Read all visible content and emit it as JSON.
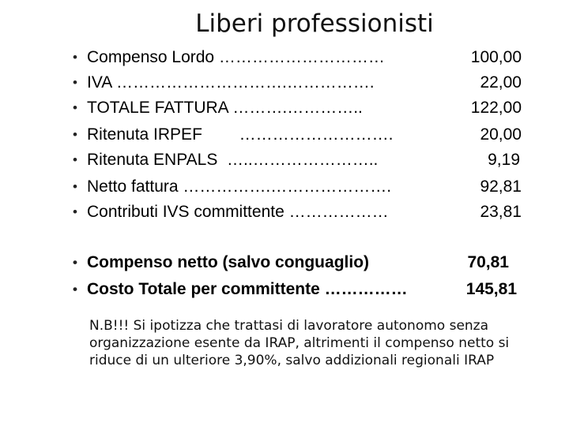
{
  "title": "Liberi professionisti",
  "rows": [
    {
      "label": "Compenso Lordo …………………………",
      "value": "100,00"
    },
    {
      "label": "IVA ………………………….…………….",
      "value": "22,00"
    },
    {
      "label": "TOTALE FATTURA ……….…………..",
      "value": "122,00"
    },
    {
      "label": "Ritenuta IRPEF        ……………………….",
      "value": "20,00"
    },
    {
      "label": "Ritenuta ENPALS  …..…………………..",
      "value": "9,19"
    },
    {
      "label": "Netto fattura …………….………………….",
      "value": "92,81"
    },
    {
      "label": "Contributi IVS committente ………………",
      "value": "23,81"
    },
    {
      "label": "Compenso netto (salvo conguaglio)",
      "value": "70,81"
    },
    {
      "label": "Costo Totale per committente ……………",
      "value": "145,81"
    }
  ],
  "bullet": "•",
  "note": {
    "prefix": "N.B!!!",
    "text": " Si ipotizza che trattasi di lavoratore autonomo senza  organizzazione esente da IRAP, altrimenti il compenso netto si riduce di  un ulteriore 3,90%, salvo addizionali regionali  IRAP"
  }
}
